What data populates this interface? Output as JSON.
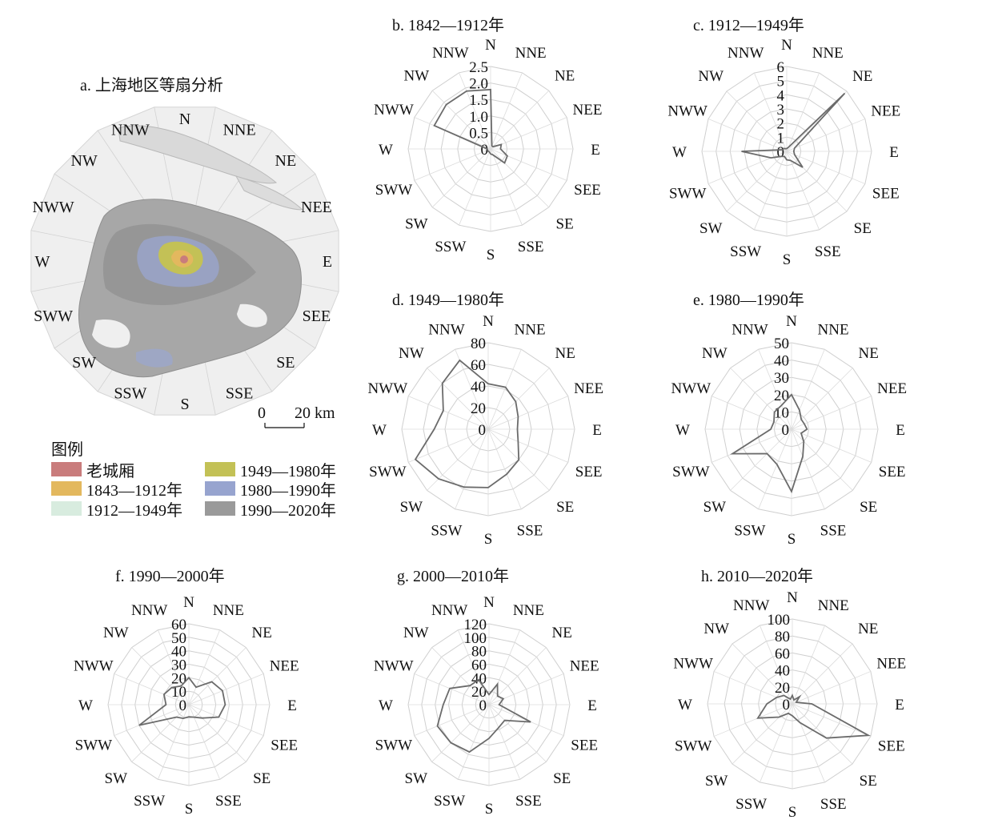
{
  "figure": {
    "map": {
      "title": "a. 上海地区等扇分析",
      "directions": [
        "N",
        "NNE",
        "NE",
        "NEE",
        "E",
        "SEE",
        "SE",
        "SSE",
        "S",
        "SSW",
        "SW",
        "SWW",
        "W",
        "NWW",
        "NW",
        "NNW"
      ],
      "scale": {
        "zero_label": "0",
        "length_label": "20 km"
      },
      "legend": {
        "title": "图例",
        "items": [
          {
            "label": "老城厢",
            "color": "#c97c7c"
          },
          {
            "label": "1949—1980年",
            "color": "#c3c156"
          },
          {
            "label": "1843—1912年",
            "color": "#e3b85e"
          },
          {
            "label": "1980—1990年",
            "color": "#97a4cf"
          },
          {
            "label": "1912—1949年",
            "color": "#d8ecdf"
          },
          {
            "label": "1990—2020年",
            "color": "#9a9a9a"
          }
        ]
      }
    }
  },
  "chart_data": [
    {
      "type": "radar",
      "id": "b",
      "title": "b. 1842—1912年",
      "categories": [
        "N",
        "NNE",
        "NE",
        "NEE",
        "E",
        "SEE",
        "SE",
        "SSE",
        "S",
        "SSW",
        "SW",
        "SWW",
        "W",
        "NWW",
        "NW",
        "NNW"
      ],
      "rlim": [
        0,
        2.5
      ],
      "rticks": [
        "0",
        "0.5",
        "1.0",
        "1.5",
        "2.0",
        "2.5"
      ],
      "values": [
        1.8,
        0.1,
        0.1,
        0.35,
        0.3,
        0.55,
        0.6,
        0.2,
        0.15,
        0.1,
        0.1,
        0.1,
        0.1,
        1.85,
        1.9,
        1.9
      ]
    },
    {
      "type": "radar",
      "id": "c",
      "title": "c. 1912—1949年",
      "categories": [
        "N",
        "NNE",
        "NE",
        "NEE",
        "E",
        "SEE",
        "SE",
        "SSE",
        "S",
        "SSW",
        "SW",
        "SWW",
        "W",
        "NWW",
        "NW",
        "NNW"
      ],
      "rlim": [
        0,
        6
      ],
      "rticks": [
        "0",
        "1",
        "2",
        "3",
        "4",
        "5",
        "6"
      ],
      "values": [
        0.2,
        0.3,
        5.8,
        0.6,
        0.5,
        0.6,
        1.6,
        0.7,
        0.6,
        0.4,
        0.5,
        1.2,
        3.2,
        0.3,
        0.3,
        0.2
      ]
    },
    {
      "type": "radar",
      "id": "d",
      "title": "d. 1949—1980年",
      "categories": [
        "N",
        "NNE",
        "NE",
        "NEE",
        "E",
        "SEE",
        "SE",
        "SSE",
        "S",
        "SSW",
        "SW",
        "SWW",
        "W",
        "NWW",
        "NW",
        "NNW"
      ],
      "rlim": [
        0,
        80
      ],
      "rticks": [
        "0",
        "20",
        "40",
        "60",
        "80"
      ],
      "values": [
        42,
        42,
        36,
        30,
        27,
        30,
        40,
        45,
        54,
        58,
        65,
        73,
        50,
        45,
        60,
        69
      ]
    },
    {
      "type": "radar",
      "id": "e",
      "title": "e. 1980—1990年",
      "categories": [
        "N",
        "NNE",
        "NE",
        "NEE",
        "E",
        "SEE",
        "SE",
        "SSE",
        "S",
        "SSW",
        "SW",
        "SWW",
        "W",
        "NWW",
        "NW",
        "NNW"
      ],
      "rlim": [
        0,
        50
      ],
      "rticks": [
        "0",
        "10",
        "20",
        "30",
        "40",
        "50"
      ],
      "values": [
        20,
        12,
        8,
        8,
        9,
        6,
        10,
        17,
        36,
        22,
        20,
        37,
        12,
        11,
        14,
        15
      ]
    },
    {
      "type": "radar",
      "id": "f",
      "title": "f. 1990—2000年",
      "categories": [
        "N",
        "NNE",
        "NE",
        "NEE",
        "E",
        "SEE",
        "SE",
        "SSE",
        "S",
        "SSW",
        "SW",
        "SWW",
        "W",
        "NWW",
        "NW",
        "NNW"
      ],
      "rlim": [
        0,
        60
      ],
      "rticks": [
        "0",
        "10",
        "20",
        "30",
        "40",
        "50",
        "60"
      ],
      "values": [
        20,
        14,
        24,
        27,
        27,
        24,
        14,
        10,
        9,
        11,
        13,
        40,
        17,
        20,
        18,
        15
      ]
    },
    {
      "type": "radar",
      "id": "g",
      "title": "g. 2000—2010年",
      "categories": [
        "N",
        "NNE",
        "NE",
        "NEE",
        "E",
        "SEE",
        "SE",
        "SSE",
        "S",
        "SSW",
        "SW",
        "SWW",
        "W",
        "NWW",
        "NW",
        "NNW"
      ],
      "rlim": [
        0,
        120
      ],
      "rticks": [
        "0",
        "20",
        "40",
        "60",
        "80",
        "100",
        "120"
      ],
      "values": [
        15,
        33,
        18,
        23,
        15,
        67,
        33,
        37,
        50,
        76,
        80,
        83,
        68,
        63,
        40,
        40
      ]
    },
    {
      "type": "radar",
      "id": "h",
      "title": "h. 2010—2020年",
      "categories": [
        "N",
        "NNE",
        "NE",
        "NEE",
        "E",
        "SEE",
        "SE",
        "SSE",
        "S",
        "SSW",
        "SW",
        "SWW",
        "W",
        "NWW",
        "NW",
        "NNW"
      ],
      "rlim": [
        0,
        100
      ],
      "rticks": [
        "0",
        "20",
        "40",
        "60",
        "80",
        "100"
      ],
      "values": [
        10,
        5,
        12,
        5,
        23,
        97,
        57,
        24,
        14,
        12,
        22,
        44,
        30,
        20,
        14,
        6
      ]
    }
  ]
}
